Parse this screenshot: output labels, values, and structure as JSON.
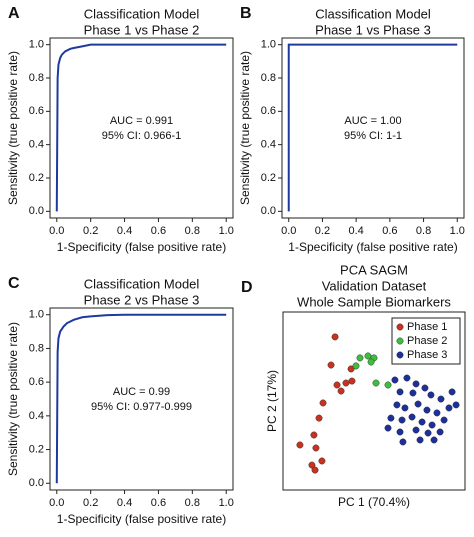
{
  "chart_data": [
    {
      "type": "line",
      "panel": "A",
      "title": [
        "Classification Model",
        "Phase 1 vs Phase 2"
      ],
      "x_label": "1-Specificity (false positive rate)",
      "y_label": "Sensitivity (true positive rate)",
      "annotations": [
        "AUC = 0.991",
        "95% CI: 0.966-1"
      ],
      "color": "#1f3a9e",
      "x": [
        0,
        0.005,
        0.01,
        0.02,
        0.03,
        0.05,
        0.08,
        0.1,
        0.15,
        0.2,
        0.3,
        1.0
      ],
      "values": [
        0,
        0.8,
        0.88,
        0.92,
        0.94,
        0.96,
        0.975,
        0.98,
        0.99,
        1.0,
        1.0,
        1.0
      ],
      "xlim": [
        -0.04,
        1.04
      ],
      "ylim": [
        -0.04,
        1.04
      ],
      "xticks": [
        {
          "value": 0,
          "label": "0.0"
        },
        0.2,
        0.4,
        0.6,
        0.8,
        {
          "value": 1,
          "label": "1.0"
        }
      ],
      "yticks": [
        {
          "value": 0,
          "label": "0.0"
        },
        0.2,
        0.4,
        0.6,
        0.8,
        {
          "value": 1,
          "label": "1.0"
        }
      ]
    },
    {
      "type": "line",
      "panel": "B",
      "title": [
        "Classification Model",
        "Phase 1 vs Phase 3"
      ],
      "x_label": "1-Specificity (false positive rate)",
      "y_label": "Sensitivity (true positive rate)",
      "annotations": [
        "AUC = 1.00",
        "95% CI: 1-1"
      ],
      "color": "#1f3a9e",
      "x": [
        0,
        0,
        1.0
      ],
      "values": [
        0,
        1.0,
        1.0
      ],
      "xlim": [
        -0.04,
        1.04
      ],
      "ylim": [
        -0.04,
        1.04
      ],
      "xticks": [
        {
          "value": 0,
          "label": "0.0"
        },
        0.2,
        0.4,
        0.6,
        0.8,
        {
          "value": 1,
          "label": "1.0"
        }
      ],
      "yticks": [
        {
          "value": 0,
          "label": "0.0"
        },
        0.2,
        0.4,
        0.6,
        0.8,
        {
          "value": 1,
          "label": "1.0"
        }
      ]
    },
    {
      "type": "line",
      "panel": "C",
      "title": [
        "Classification Model",
        "Phase 2 vs Phase 3"
      ],
      "x_label": "1-Specificity (false positive rate)",
      "y_label": "Sensitivity (true positive rate)",
      "annotations": [
        "AUC = 0.99",
        "95% CI: 0.977-0.999"
      ],
      "color": "#1f3a9e",
      "x": [
        0,
        0.005,
        0.01,
        0.02,
        0.04,
        0.06,
        0.1,
        0.15,
        0.2,
        0.3,
        0.4,
        1.0
      ],
      "values": [
        0,
        0.78,
        0.86,
        0.9,
        0.93,
        0.95,
        0.97,
        0.985,
        0.99,
        0.998,
        1.0,
        1.0
      ],
      "xlim": [
        -0.04,
        1.04
      ],
      "ylim": [
        -0.04,
        1.04
      ],
      "xticks": [
        {
          "value": 0,
          "label": "0.0"
        },
        0.2,
        0.4,
        0.6,
        0.8,
        {
          "value": 1,
          "label": "1.0"
        }
      ],
      "yticks": [
        {
          "value": 0,
          "label": "0.0"
        },
        0.2,
        0.4,
        0.6,
        0.8,
        {
          "value": 1,
          "label": "1.0"
        }
      ]
    },
    {
      "type": "scatter",
      "panel": "D",
      "title": [
        "PCA SAGM",
        "Validation Dataset",
        "Whole Sample Biomarkers"
      ],
      "x_label": "PC 1 (70.4%)",
      "y_label": "PC 2 (17%)",
      "legend": "upper right",
      "xlim": [
        0,
        100
      ],
      "ylim": [
        0,
        100
      ],
      "series": [
        {
          "name": "Phase 1",
          "color": "#c8321f",
          "x": [
            28.6,
            26.4,
            37.4,
            37.9,
            29.7,
            34.6,
            31.9,
            22,
            19.8,
            17,
            9.3,
            18.1,
            15.9,
            17.6,
            21.4
          ],
          "y": [
            86,
            70.2,
            68,
            61.2,
            59,
            60.1,
            55.6,
            48.9,
            40.4,
            30.9,
            25.3,
            23.6,
            14,
            11.2,
            16.3
          ]
        },
        {
          "name": "Phase 2",
          "color": "#3cbf3c",
          "x": [
            42.3,
            46.7,
            50,
            48.4,
            40.1,
            51.1,
            57.7
          ],
          "y": [
            74.2,
            75.3,
            74.2,
            71.9,
            69.7,
            60.1,
            59
          ]
        },
        {
          "name": "Phase 3",
          "color": "#1c2f9c",
          "x": [
            61.5,
            68.1,
            73.1,
            64.3,
            71.4,
            78,
            81.3,
            86.8,
            92.9,
            62.6,
            67,
            74.2,
            79.1,
            84.6,
            91.2,
            95.1,
            59.3,
            65.4,
            70.9,
            76.4,
            81.9,
            88.5,
            57.7,
            64.3,
            73.1,
            79.7,
            86.3,
            75.3,
            83,
            65.9
          ],
          "y": [
            61.8,
            62.9,
            59.6,
            55.1,
            54.5,
            57.3,
            53.4,
            51.1,
            55.1,
            47.8,
            46.1,
            48.3,
            44.9,
            43.3,
            46.1,
            47.8,
            40.4,
            39.3,
            41,
            38.2,
            36.5,
            39.3,
            34.8,
            32.6,
            33.7,
            32,
            32.6,
            28.1,
            28.1,
            27
          ]
        }
      ]
    }
  ]
}
